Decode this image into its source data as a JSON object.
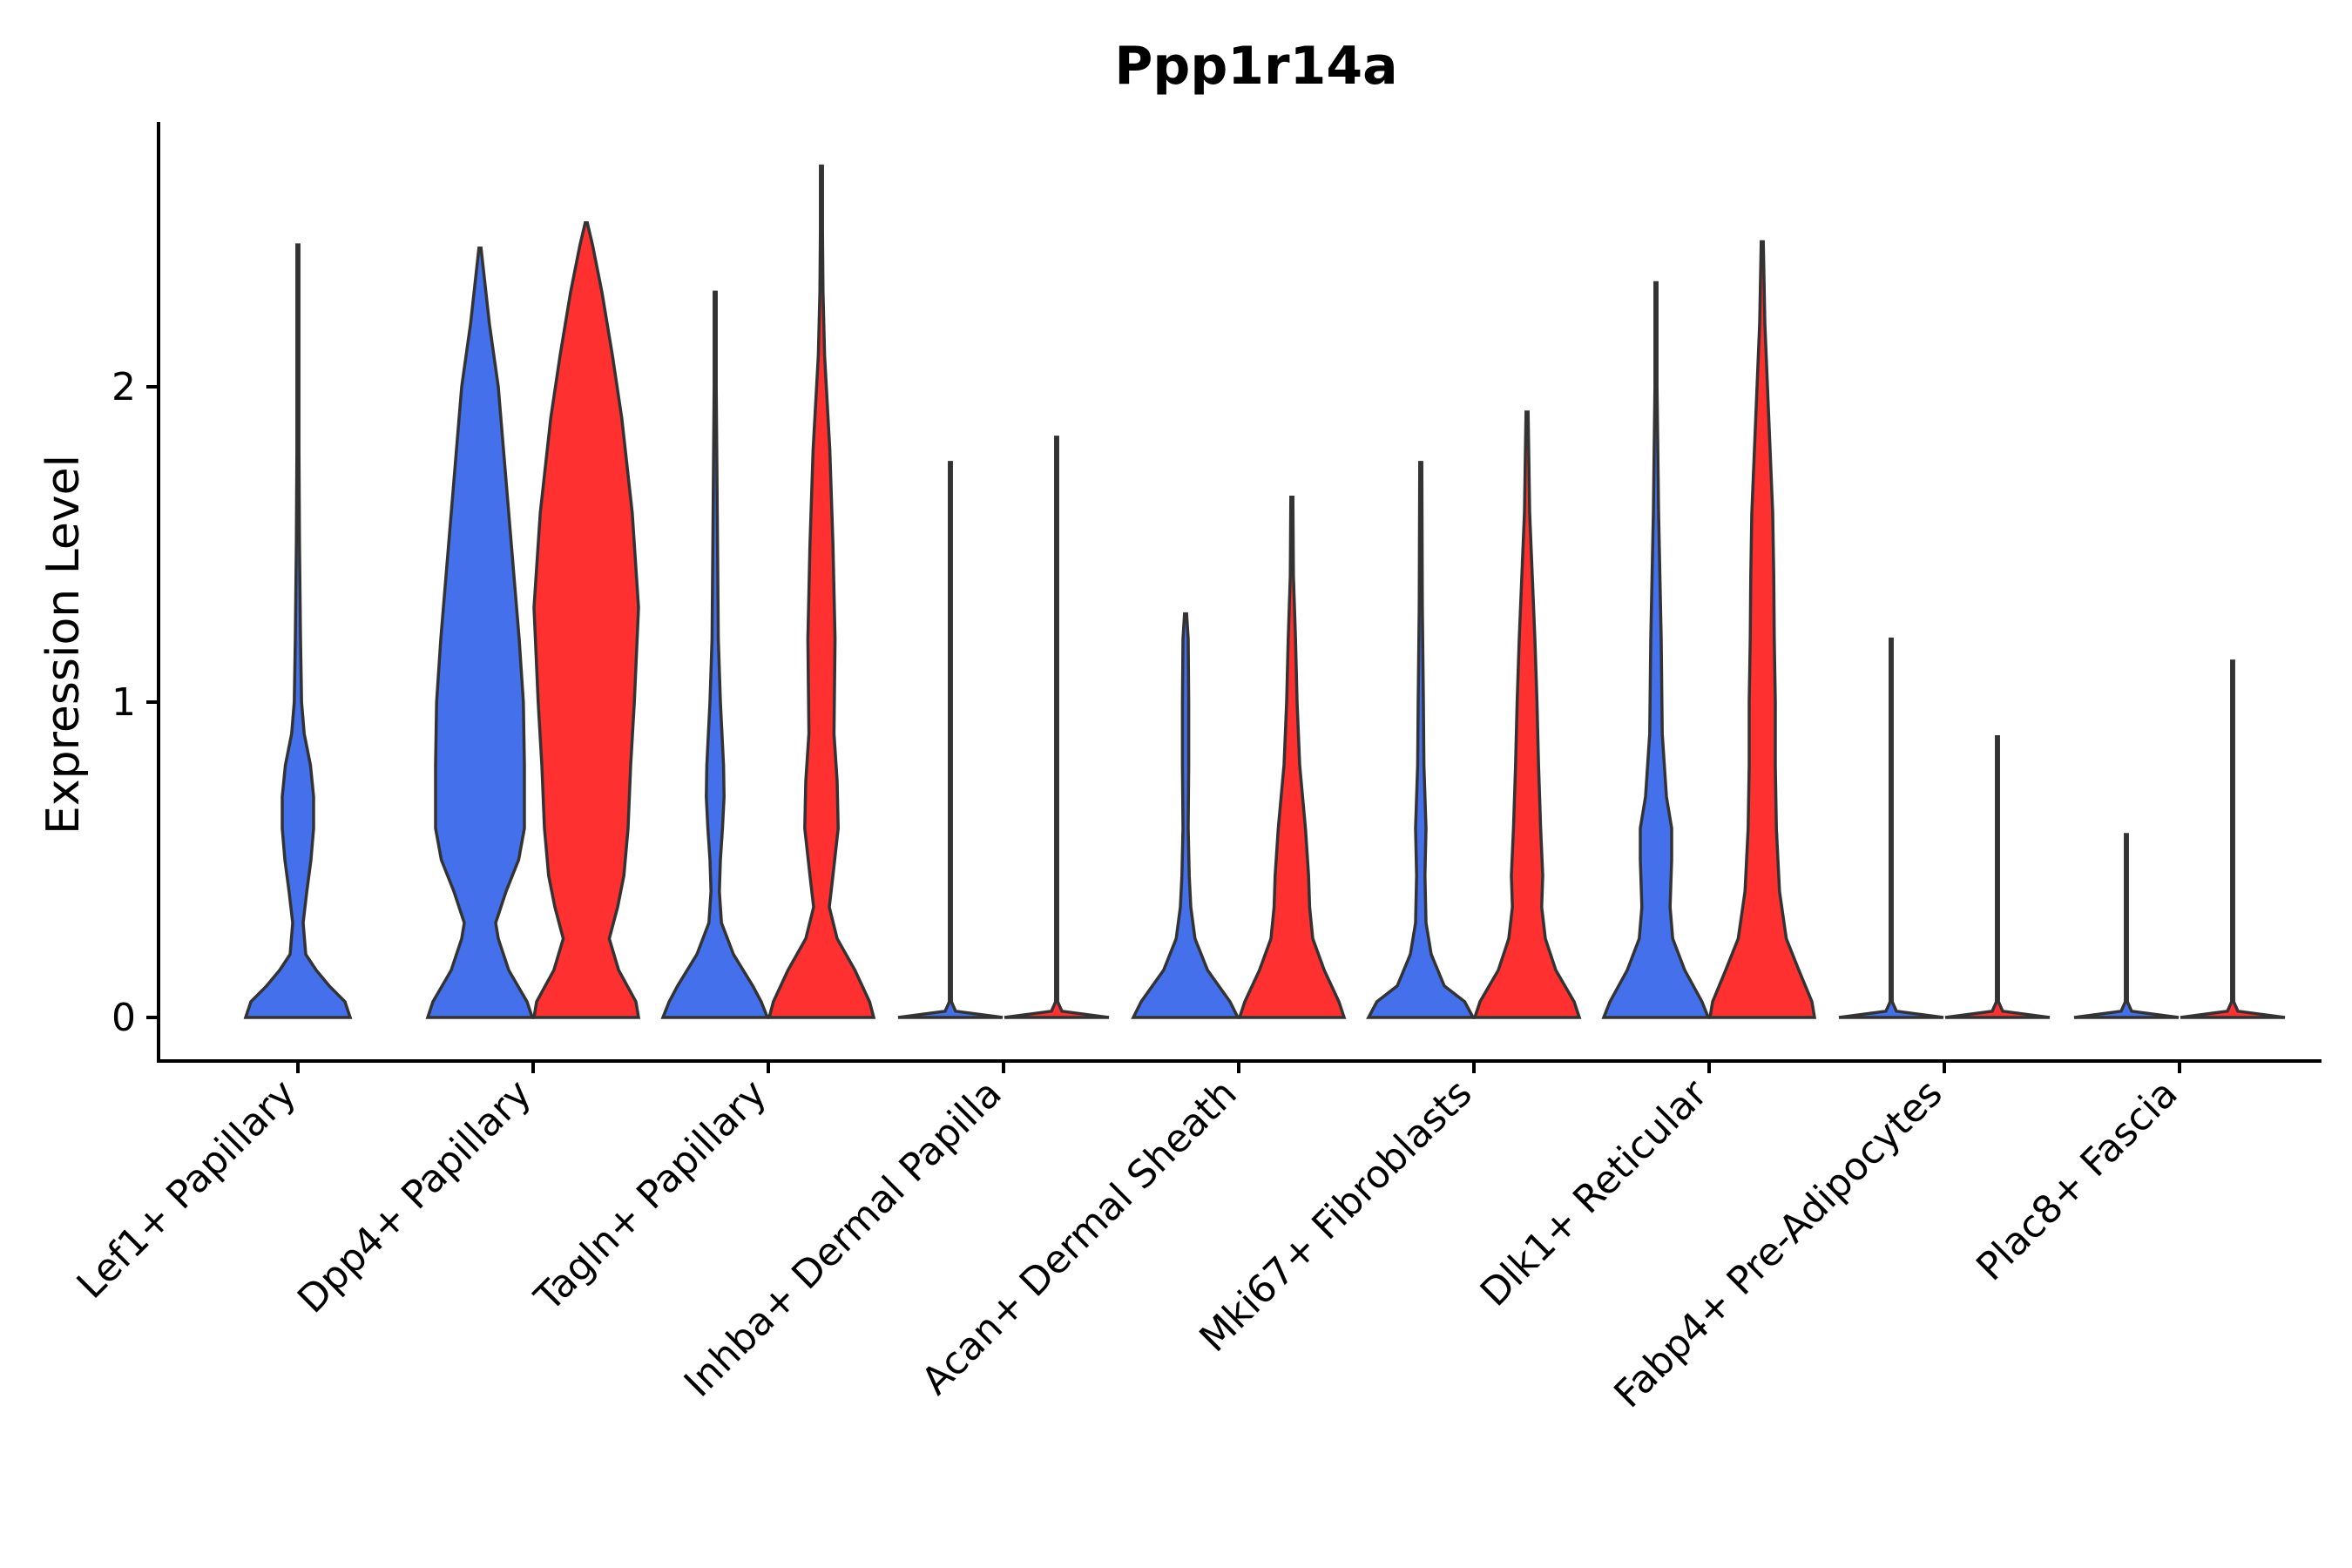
{
  "chart_data": {
    "type": "violin",
    "title": "Ppp1r14a",
    "xlabel": "",
    "ylabel": "Expression Level",
    "ylim": [
      -0.14,
      2.85
    ],
    "yticks": [
      0,
      1,
      2
    ],
    "grid": false,
    "legend": "none",
    "colors": {
      "blue": "#4470EB",
      "red": "#FE3030",
      "stroke": "#333333"
    },
    "categories": [
      "Lef1+ Papillary",
      "Dpp4+ Papillary",
      "Tagln+ Papillary",
      "Inhba+ Dermal Papilla",
      "Acan+ Dermal Sheath",
      "Mki67+ Fibroblasts",
      "Dlk1+ Reticular",
      "Fabp4+ Pre-Adipocytes",
      "Plac8+ Fascia"
    ],
    "violins": [
      {
        "category": "Lef1+ Papillary",
        "group": "blue",
        "max": 2.45,
        "profile": [
          [
            0,
            1.0
          ],
          [
            0.05,
            0.9
          ],
          [
            0.1,
            0.6
          ],
          [
            0.15,
            0.35
          ],
          [
            0.2,
            0.15
          ],
          [
            0.3,
            0.1
          ],
          [
            0.4,
            0.17
          ],
          [
            0.5,
            0.25
          ],
          [
            0.6,
            0.3
          ],
          [
            0.7,
            0.3
          ],
          [
            0.8,
            0.24
          ],
          [
            0.9,
            0.12
          ],
          [
            1.0,
            0.07
          ],
          [
            1.2,
            0.05
          ],
          [
            1.5,
            0.03
          ],
          [
            1.8,
            0.015
          ],
          [
            2.1,
            0.01
          ],
          [
            2.45,
            0.005
          ]
        ]
      },
      {
        "category": "Dpp4+ Papillary",
        "group": "blue",
        "max": 2.44,
        "profile": [
          [
            0,
            1.0
          ],
          [
            0.05,
            0.9
          ],
          [
            0.15,
            0.55
          ],
          [
            0.25,
            0.35
          ],
          [
            0.3,
            0.3
          ],
          [
            0.4,
            0.5
          ],
          [
            0.5,
            0.74
          ],
          [
            0.6,
            0.85
          ],
          [
            0.8,
            0.85
          ],
          [
            1.0,
            0.83
          ],
          [
            1.2,
            0.75
          ],
          [
            1.5,
            0.6
          ],
          [
            1.8,
            0.45
          ],
          [
            2.0,
            0.35
          ],
          [
            2.2,
            0.18
          ],
          [
            2.35,
            0.08
          ],
          [
            2.44,
            0.01
          ]
        ]
      },
      {
        "category": "Dpp4+ Papillary",
        "group": "red",
        "max": 2.52,
        "profile": [
          [
            0,
            1.0
          ],
          [
            0.05,
            0.95
          ],
          [
            0.15,
            0.62
          ],
          [
            0.25,
            0.44
          ],
          [
            0.35,
            0.6
          ],
          [
            0.45,
            0.72
          ],
          [
            0.6,
            0.8
          ],
          [
            0.8,
            0.85
          ],
          [
            1.0,
            0.92
          ],
          [
            1.3,
            1.0
          ],
          [
            1.6,
            0.88
          ],
          [
            1.9,
            0.68
          ],
          [
            2.1,
            0.5
          ],
          [
            2.3,
            0.3
          ],
          [
            2.45,
            0.12
          ],
          [
            2.52,
            0.01
          ]
        ]
      },
      {
        "category": "Tagln+ Papillary",
        "group": "blue",
        "max": 2.3,
        "profile": [
          [
            0,
            1.0
          ],
          [
            0.05,
            0.88
          ],
          [
            0.1,
            0.72
          ],
          [
            0.2,
            0.35
          ],
          [
            0.3,
            0.12
          ],
          [
            0.4,
            0.08
          ],
          [
            0.5,
            0.1
          ],
          [
            0.6,
            0.14
          ],
          [
            0.7,
            0.17
          ],
          [
            0.8,
            0.16
          ],
          [
            1.0,
            0.1
          ],
          [
            1.2,
            0.06
          ],
          [
            1.6,
            0.04
          ],
          [
            2.0,
            0.02
          ],
          [
            2.3,
            0.005
          ]
        ]
      },
      {
        "category": "Tagln+ Papillary",
        "group": "red",
        "max": 2.7,
        "profile": [
          [
            0,
            1.0
          ],
          [
            0.05,
            0.92
          ],
          [
            0.15,
            0.64
          ],
          [
            0.25,
            0.3
          ],
          [
            0.35,
            0.15
          ],
          [
            0.45,
            0.22
          ],
          [
            0.6,
            0.32
          ],
          [
            0.75,
            0.3
          ],
          [
            0.9,
            0.24
          ],
          [
            1.2,
            0.26
          ],
          [
            1.5,
            0.22
          ],
          [
            1.8,
            0.16
          ],
          [
            2.1,
            0.06
          ],
          [
            2.3,
            0.03
          ],
          [
            2.5,
            0.015
          ],
          [
            2.7,
            0.005
          ]
        ]
      },
      {
        "category": "Inhba+ Dermal Papilla",
        "group": "blue",
        "max": 1.76,
        "profile": [
          [
            0,
            1.0
          ],
          [
            0.02,
            0.1
          ],
          [
            0.05,
            0.01
          ],
          [
            1.76,
            0.006
          ]
        ]
      },
      {
        "category": "Inhba+ Dermal Papilla",
        "group": "red",
        "max": 1.84,
        "profile": [
          [
            0,
            1.0
          ],
          [
            0.02,
            0.1
          ],
          [
            0.05,
            0.01
          ],
          [
            1.84,
            0.006
          ]
        ]
      },
      {
        "category": "Acan+ Dermal Sheath",
        "group": "blue",
        "max": 1.28,
        "profile": [
          [
            0,
            1.0
          ],
          [
            0.05,
            0.85
          ],
          [
            0.15,
            0.42
          ],
          [
            0.25,
            0.18
          ],
          [
            0.35,
            0.1
          ],
          [
            0.45,
            0.07
          ],
          [
            0.6,
            0.05
          ],
          [
            0.8,
            0.06
          ],
          [
            1.0,
            0.06
          ],
          [
            1.2,
            0.05
          ],
          [
            1.28,
            0.02
          ]
        ]
      },
      {
        "category": "Acan+ Dermal Sheath",
        "group": "red",
        "max": 1.65,
        "profile": [
          [
            0,
            1.0
          ],
          [
            0.05,
            0.9
          ],
          [
            0.15,
            0.62
          ],
          [
            0.25,
            0.4
          ],
          [
            0.35,
            0.34
          ],
          [
            0.45,
            0.32
          ],
          [
            0.6,
            0.26
          ],
          [
            0.8,
            0.15
          ],
          [
            1.0,
            0.1
          ],
          [
            1.2,
            0.07
          ],
          [
            1.4,
            0.03
          ],
          [
            1.65,
            0.005
          ]
        ]
      },
      {
        "category": "Mki67+ Fibroblasts",
        "group": "blue",
        "max": 1.76,
        "profile": [
          [
            0,
            1.0
          ],
          [
            0.05,
            0.84
          ],
          [
            0.1,
            0.45
          ],
          [
            0.2,
            0.2
          ],
          [
            0.3,
            0.1
          ],
          [
            0.45,
            0.08
          ],
          [
            0.6,
            0.1
          ],
          [
            0.8,
            0.06
          ],
          [
            1.0,
            0.05
          ],
          [
            1.3,
            0.03
          ],
          [
            1.76,
            0.005
          ]
        ]
      },
      {
        "category": "Mki67+ Fibroblasts",
        "group": "red",
        "max": 1.92,
        "profile": [
          [
            0,
            1.0
          ],
          [
            0.05,
            0.9
          ],
          [
            0.15,
            0.55
          ],
          [
            0.25,
            0.35
          ],
          [
            0.35,
            0.28
          ],
          [
            0.45,
            0.3
          ],
          [
            0.6,
            0.26
          ],
          [
            0.8,
            0.22
          ],
          [
            1.0,
            0.19
          ],
          [
            1.2,
            0.15
          ],
          [
            1.4,
            0.1
          ],
          [
            1.6,
            0.05
          ],
          [
            1.92,
            0.005
          ]
        ]
      },
      {
        "category": "Dlk1+ Reticular",
        "group": "blue",
        "max": 2.33,
        "profile": [
          [
            0,
            1.0
          ],
          [
            0.05,
            0.88
          ],
          [
            0.15,
            0.55
          ],
          [
            0.25,
            0.32
          ],
          [
            0.35,
            0.27
          ],
          [
            0.5,
            0.3
          ],
          [
            0.6,
            0.3
          ],
          [
            0.7,
            0.2
          ],
          [
            0.9,
            0.12
          ],
          [
            1.2,
            0.1
          ],
          [
            1.6,
            0.05
          ],
          [
            2.0,
            0.02
          ],
          [
            2.33,
            0.005
          ]
        ]
      },
      {
        "category": "Dlk1+ Reticular",
        "group": "red",
        "max": 2.46,
        "profile": [
          [
            0,
            1.0
          ],
          [
            0.05,
            0.95
          ],
          [
            0.15,
            0.7
          ],
          [
            0.25,
            0.46
          ],
          [
            0.4,
            0.33
          ],
          [
            0.6,
            0.27
          ],
          [
            0.8,
            0.25
          ],
          [
            1.0,
            0.25
          ],
          [
            1.2,
            0.23
          ],
          [
            1.4,
            0.22
          ],
          [
            1.6,
            0.2
          ],
          [
            1.8,
            0.15
          ],
          [
            2.0,
            0.1
          ],
          [
            2.2,
            0.05
          ],
          [
            2.46,
            0.005
          ]
        ]
      },
      {
        "category": "Fabp4+ Pre-Adipocytes",
        "group": "blue",
        "max": 1.2,
        "profile": [
          [
            0,
            1.0
          ],
          [
            0.02,
            0.1
          ],
          [
            0.05,
            0.01
          ],
          [
            1.2,
            0.006
          ]
        ]
      },
      {
        "category": "Fabp4+ Pre-Adipocytes",
        "group": "red",
        "max": 0.89,
        "profile": [
          [
            0,
            1.0
          ],
          [
            0.02,
            0.1
          ],
          [
            0.05,
            0.01
          ],
          [
            0.89,
            0.006
          ]
        ]
      },
      {
        "category": "Plac8+ Fascia",
        "group": "blue",
        "max": 0.58,
        "profile": [
          [
            0,
            1.0
          ],
          [
            0.02,
            0.1
          ],
          [
            0.05,
            0.01
          ],
          [
            0.58,
            0.006
          ]
        ]
      },
      {
        "category": "Plac8+ Fascia",
        "group": "red",
        "max": 1.13,
        "profile": [
          [
            0,
            1.0
          ],
          [
            0.02,
            0.1
          ],
          [
            0.05,
            0.01
          ],
          [
            1.13,
            0.006
          ]
        ]
      }
    ]
  }
}
